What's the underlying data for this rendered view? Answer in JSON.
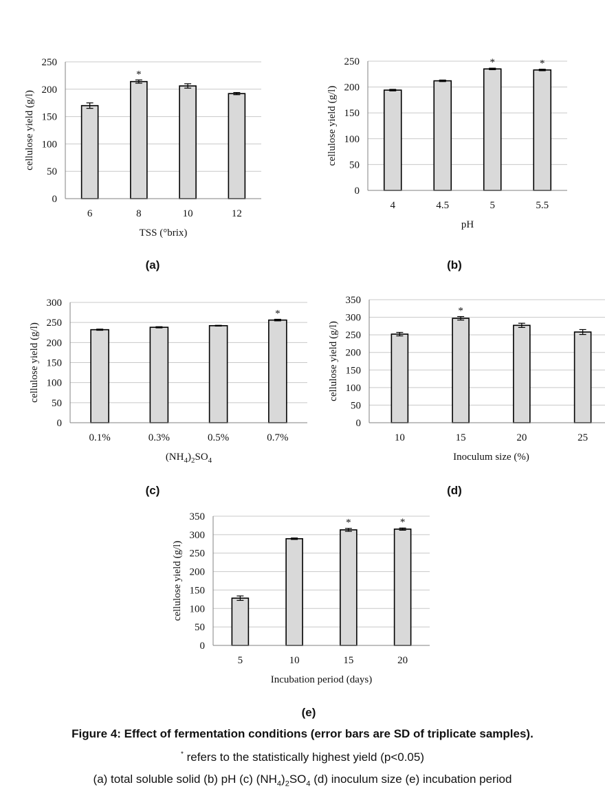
{
  "charts": {
    "chart_a": {
      "type": "bar",
      "letter": "(a)",
      "ylabel": "cellulose yield (g/l)",
      "xlabel_parts": [
        {
          "t": "TSS  (°brix)"
        }
      ],
      "categories": [
        "6",
        "8",
        "10",
        "12"
      ],
      "values": [
        170,
        214,
        206,
        192
      ],
      "errors": [
        5,
        3,
        4,
        2
      ],
      "significant": [
        false,
        true,
        false,
        false
      ],
      "yticks": [
        0,
        50,
        100,
        150,
        200,
        250
      ],
      "ylim": [
        0,
        250
      ]
    },
    "chart_b": {
      "type": "bar",
      "letter": "(b)",
      "ylabel": "cellulose yield (g/l)",
      "xlabel_parts": [
        {
          "t": "pH"
        }
      ],
      "categories": [
        "4",
        "4.5",
        "5",
        "5.5"
      ],
      "values": [
        194,
        212,
        235,
        233
      ],
      "errors": [
        1.5,
        1.5,
        1.5,
        1.5
      ],
      "significant": [
        false,
        false,
        true,
        true
      ],
      "yticks": [
        0,
        50,
        100,
        150,
        200,
        250
      ],
      "ylim": [
        0,
        250
      ]
    },
    "chart_c": {
      "type": "bar",
      "letter": "(c)",
      "ylabel": "cellulose yield (g/l)",
      "xlabel_parts": [
        {
          "t": "(NH"
        },
        {
          "t": "4",
          "sub": true
        },
        {
          "t": ")"
        },
        {
          "t": "2",
          "sub": true
        },
        {
          "t": "SO"
        },
        {
          "t": "4",
          "sub": true
        }
      ],
      "categories": [
        "0.1%",
        "0.3%",
        "0.5%",
        "0.7%"
      ],
      "values": [
        232,
        238,
        242,
        256
      ],
      "errors": [
        1.5,
        1.5,
        1,
        2
      ],
      "significant": [
        false,
        false,
        false,
        true
      ],
      "yticks": [
        0,
        50,
        100,
        150,
        200,
        250,
        300
      ],
      "ylim": [
        0,
        300
      ]
    },
    "chart_d": {
      "type": "bar",
      "letter": "(d)",
      "ylabel": "cellulose yield (g/l)",
      "xlabel_parts": [
        {
          "t": "Inoculum size (%)"
        }
      ],
      "categories": [
        "10",
        "15",
        "20",
        "25"
      ],
      "values": [
        252,
        297,
        277,
        258
      ],
      "errors": [
        5,
        5,
        6,
        7
      ],
      "significant": [
        false,
        true,
        false,
        false
      ],
      "yticks": [
        0,
        50,
        100,
        150,
        200,
        250,
        300,
        350
      ],
      "ylim": [
        0,
        350
      ]
    },
    "chart_e": {
      "type": "bar",
      "letter": "(e)",
      "ylabel": "cellulose yield (g/l)",
      "xlabel_parts": [
        {
          "t": "Incubation period (days)"
        }
      ],
      "categories": [
        "5",
        "10",
        "15",
        "20"
      ],
      "values": [
        128,
        289,
        313,
        315
      ],
      "errors": [
        6,
        2,
        4,
        3
      ],
      "significant": [
        false,
        false,
        true,
        true
      ],
      "yticks": [
        0,
        50,
        100,
        150,
        200,
        250,
        300,
        350
      ],
      "ylim": [
        0,
        350
      ]
    }
  },
  "chart_data": [
    {
      "type": "bar",
      "xlabel": "TSS  (°brix)",
      "ylabel": "cellulose yield (g/l)",
      "categories": [
        "6",
        "8",
        "10",
        "12"
      ],
      "values": [
        170,
        214,
        206,
        192
      ],
      "ylim": [
        0,
        250
      ]
    },
    {
      "type": "bar",
      "xlabel": "pH",
      "ylabel": "cellulose yield (g/l)",
      "categories": [
        "4",
        "4.5",
        "5",
        "5.5"
      ],
      "values": [
        194,
        212,
        235,
        233
      ],
      "ylim": [
        0,
        250
      ]
    },
    {
      "type": "bar",
      "xlabel": "(NH4)2SO4",
      "ylabel": "cellulose yield (g/l)",
      "categories": [
        "0.1%",
        "0.3%",
        "0.5%",
        "0.7%"
      ],
      "values": [
        232,
        238,
        242,
        256
      ],
      "ylim": [
        0,
        300
      ]
    },
    {
      "type": "bar",
      "xlabel": "Inoculum size (%)",
      "ylabel": "cellulose yield (g/l)",
      "categories": [
        "10",
        "15",
        "20",
        "25"
      ],
      "values": [
        252,
        297,
        277,
        258
      ],
      "ylim": [
        0,
        350
      ]
    },
    {
      "type": "bar",
      "xlabel": "Incubation period (days)",
      "ylabel": "cellulose yield (g/l)",
      "categories": [
        "5",
        "10",
        "15",
        "20"
      ],
      "values": [
        128,
        289,
        313,
        315
      ],
      "ylim": [
        0,
        350
      ]
    }
  ],
  "significance_marker": "*",
  "caption": {
    "title": "Figure 4: Effect of fermentation conditions (error bars are SD of triplicate samples).",
    "note_mark": "*",
    "note": " refers to the statistically highest yield (p<0.05)",
    "desc_1": "(a) total soluble solid (b) pH (c) (NH",
    "desc_sub1": "4",
    "desc_2": ")",
    "desc_sub2": "2",
    "desc_3": "SO",
    "desc_sub3": "4",
    "desc_4": " (d) inoculum size (e) incubation period"
  },
  "colors": {
    "bar_fill": "#d9d9d9",
    "bar_stroke": "#000000",
    "grid": "#c8c8c8",
    "axis": "#808080"
  }
}
